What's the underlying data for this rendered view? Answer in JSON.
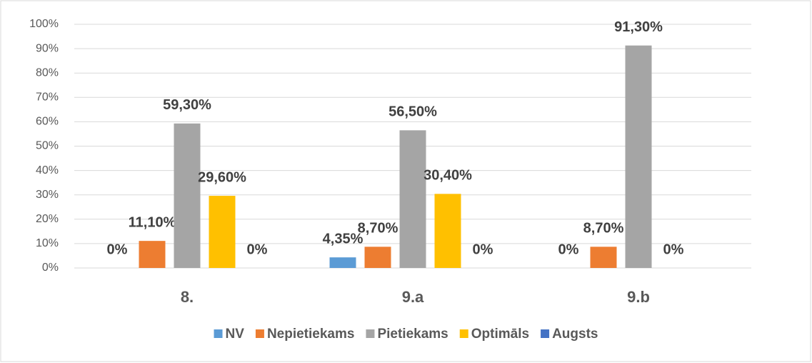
{
  "chart_data": {
    "type": "bar",
    "categories": [
      "8.",
      "9.a",
      "9.b"
    ],
    "series": [
      {
        "name": "NV",
        "color": "#5b9bd5",
        "values": [
          0,
          4.35,
          0
        ],
        "value_labels": [
          "0%",
          "4,35%",
          "0%"
        ]
      },
      {
        "name": "Nepietiekams",
        "color": "#ed7d31",
        "values": [
          11.1,
          8.7,
          8.7
        ],
        "value_labels": [
          "11,10%",
          "8,70%",
          "8,70%"
        ]
      },
      {
        "name": "Pietiekams",
        "color": "#a5a5a5",
        "values": [
          59.3,
          56.5,
          91.3
        ],
        "value_labels": [
          "59,30%",
          "56,50%",
          "91,30%"
        ]
      },
      {
        "name": "Optimāls",
        "color": "#ffc000",
        "values": [
          29.6,
          30.4,
          0
        ],
        "value_labels": [
          "29,60%",
          "30,40%",
          "0%"
        ]
      },
      {
        "name": "Augsts",
        "color": "#4472c4",
        "values": [
          0,
          0,
          null
        ],
        "value_labels": [
          "0%",
          "0%",
          null
        ]
      }
    ],
    "ylim": [
      0,
      100
    ],
    "yticks": [
      {
        "value": 0,
        "label": "0%"
      },
      {
        "value": 10,
        "label": "10%"
      },
      {
        "value": 20,
        "label": "20%"
      },
      {
        "value": 30,
        "label": "30%"
      },
      {
        "value": 40,
        "label": "40%"
      },
      {
        "value": 50,
        "label": "50%"
      },
      {
        "value": 60,
        "label": "60%"
      },
      {
        "value": 70,
        "label": "70%"
      },
      {
        "value": 80,
        "label": "80%"
      },
      {
        "value": 90,
        "label": "90%"
      },
      {
        "value": 100,
        "label": "100%"
      }
    ],
    "grid": true,
    "legend": "bottom"
  }
}
